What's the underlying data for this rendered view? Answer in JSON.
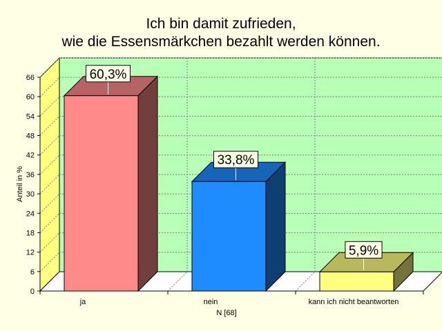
{
  "chart_data": {
    "type": "bar",
    "title_lines": [
      "Ich bin damit zufrieden,",
      "wie die Essensmärkchen bezahlt werden können."
    ],
    "categories": [
      "ja",
      "nein",
      "kann ich nicht beantworten"
    ],
    "values": [
      60.3,
      33.8,
      5.9
    ],
    "data_labels": [
      "60,3%",
      "33,8%",
      "5,9%"
    ],
    "colors": {
      "bars": [
        "#ff8a8a",
        "#1e8cff",
        "#ffff80"
      ],
      "plot_back": "#b8ffb8",
      "side_wall": "#ffff80",
      "floor": "#ffffff",
      "page_background": "#ffffe6"
    },
    "ylabel": "Anteil in %",
    "xlabel": "N [68]",
    "ylim": [
      0,
      66
    ],
    "yticks": [
      0,
      6,
      12,
      18,
      24,
      30,
      36,
      42,
      48,
      54,
      60,
      66
    ],
    "grid": true,
    "three_d": true
  }
}
